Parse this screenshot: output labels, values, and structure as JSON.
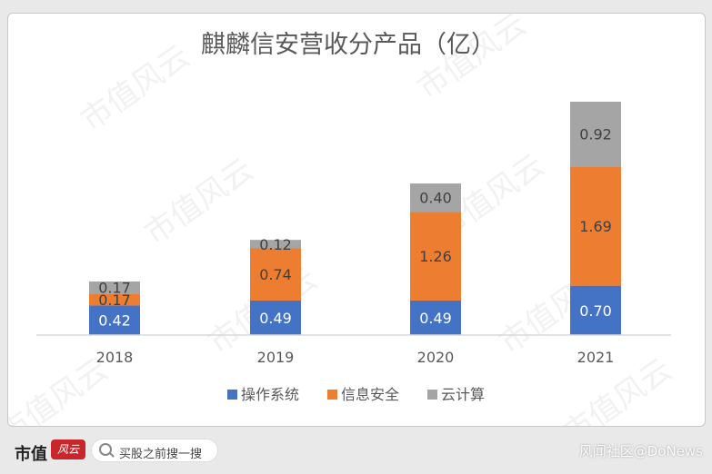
{
  "chart_data": {
    "type": "bar",
    "stacked": true,
    "title": "麒麟信安营收分产品（亿）",
    "categories": [
      "2018",
      "2019",
      "2020",
      "2021"
    ],
    "series": [
      {
        "name": "操作系统",
        "color": "#4472c4",
        "values": [
          0.42,
          0.49,
          0.49,
          0.7
        ],
        "labels": [
          "0.42",
          "0.49",
          "0.49",
          "0.70"
        ]
      },
      {
        "name": "信息安全",
        "color": "#ed7d31",
        "values": [
          0.17,
          0.74,
          1.26,
          1.69
        ],
        "labels": [
          "0.17",
          "0.74",
          "1.26",
          "1.69"
        ]
      },
      {
        "name": "云计算",
        "color": "#a5a5a5",
        "values": [
          0.17,
          0.12,
          0.4,
          0.92
        ],
        "labels": [
          "0.17",
          "0.12",
          "0.40",
          "0.92"
        ]
      }
    ],
    "legend_position": "bottom",
    "xlabel": "",
    "ylabel": "",
    "ylim": [
      0,
      3.31
    ]
  },
  "watermark": "市值风云",
  "footer": {
    "brand": "市值",
    "brand_logo": "风云",
    "search_placeholder": "买股之前搜一搜",
    "credit": "风闻社区@DoNews"
  }
}
